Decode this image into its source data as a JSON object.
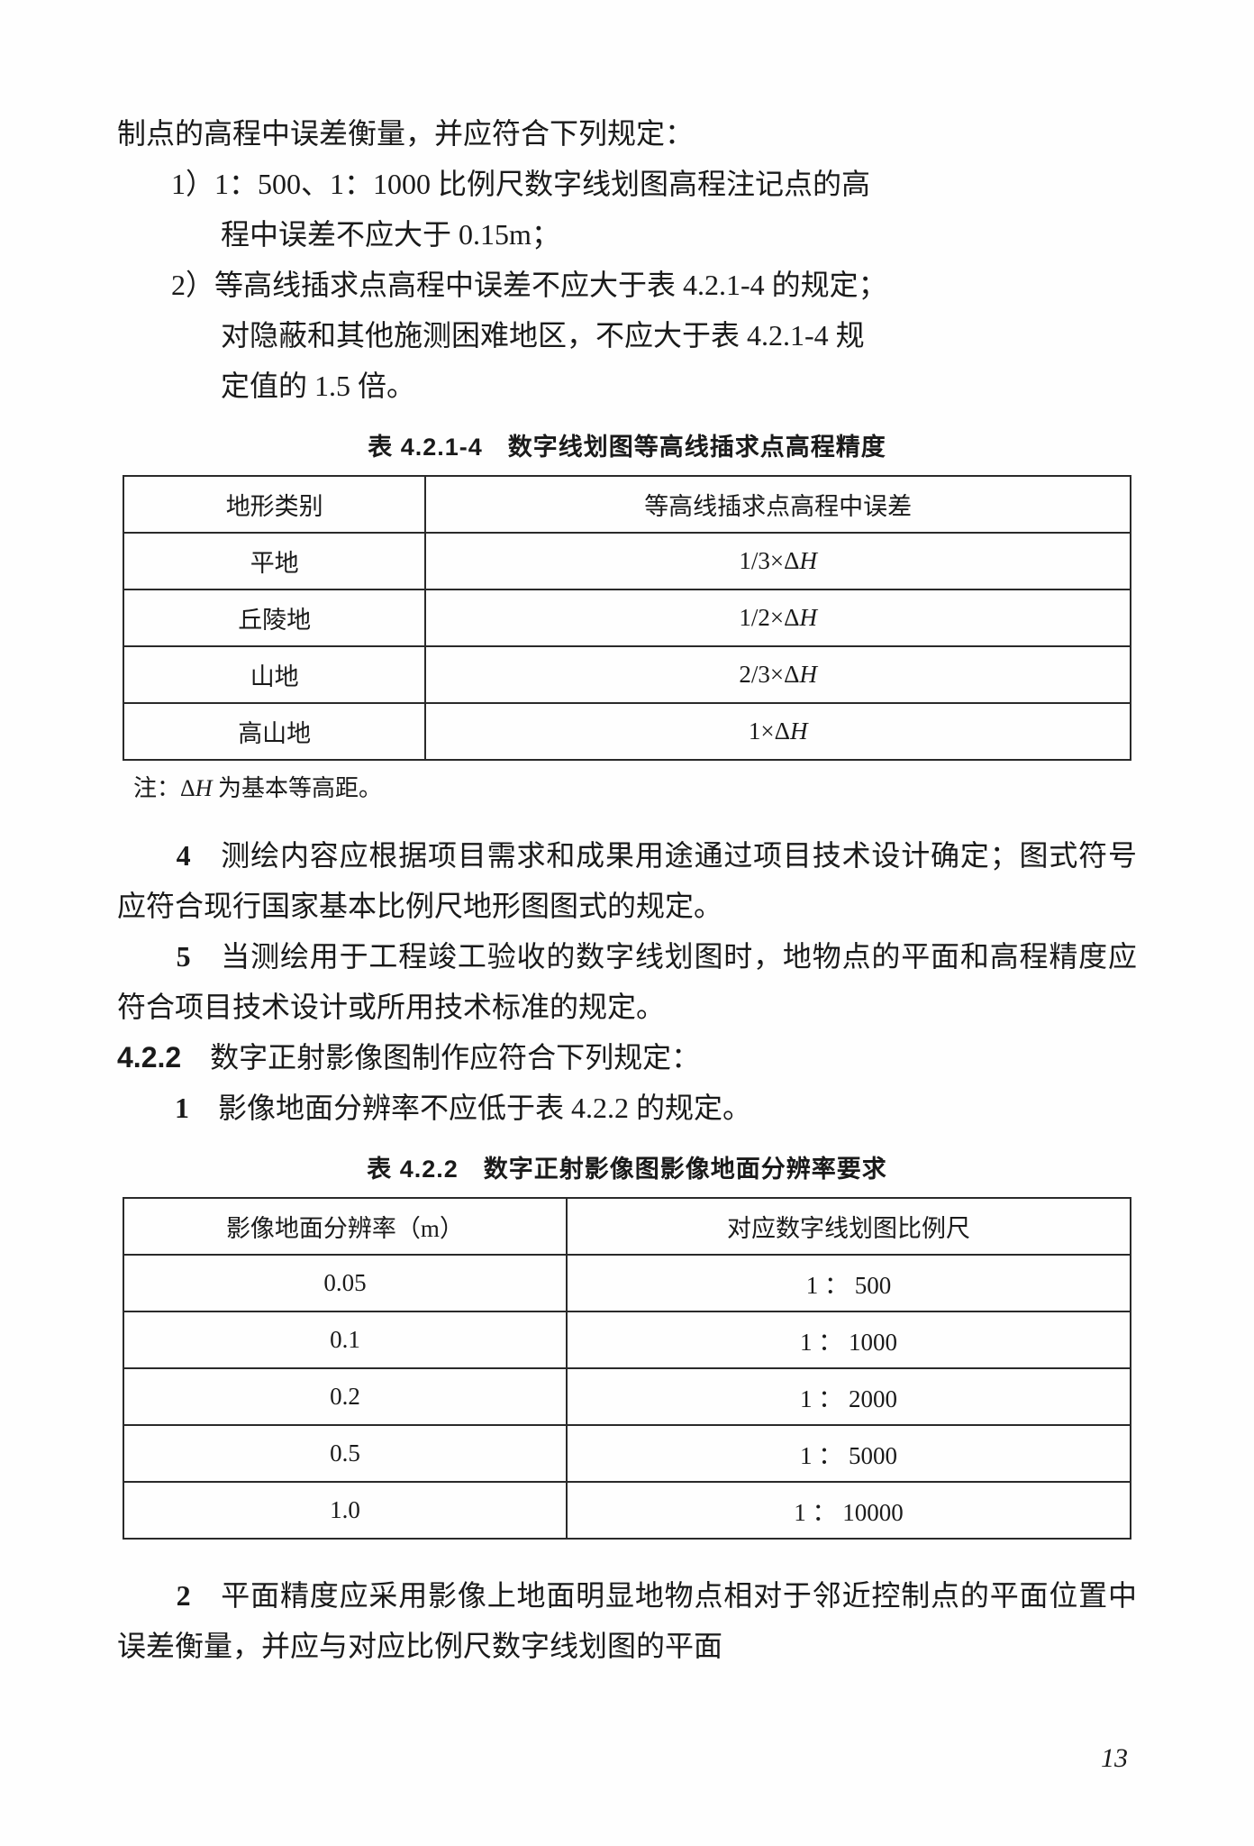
{
  "intro_line": "制点的高程中误差衡量，并应符合下列规定：",
  "item1_a": "1）1：500、1：1000 比例尺数字线划图高程注记点的高",
  "item1_b": "程中误差不应大于 0.15m；",
  "item2_a": "2）等高线插求点高程中误差不应大于表 4.2.1-4 的规定；",
  "item2_b": "对隐蔽和其他施测困难地区，不应大于表 4.2.1-4 规",
  "item2_c": "定值的 1.5 倍。",
  "table1_title": "表 4.2.1-4　数字线划图等高线插求点高程精度",
  "t1": {
    "h1": "地形类别",
    "h2": "等高线插求点高程中误差",
    "rows": [
      {
        "c1": "平地",
        "c2": "1/3×Δ<i>H</i>"
      },
      {
        "c1": "丘陵地",
        "c2": "1/2×Δ<i>H</i>"
      },
      {
        "c1": "山地",
        "c2": "2/3×Δ<i>H</i>"
      },
      {
        "c1": "高山地",
        "c2": "1×Δ<i>H</i>"
      }
    ]
  },
  "t1_note": "注：Δ<i>H</i> 为基本等高距。",
  "para4": "　　<b>4</b>　测绘内容应根据项目需求和成果用途通过项目技术设计确定；图式符号应符合现行国家基本比例尺地形图图式的规定。",
  "para5": "　　<b>5</b>　当测绘用于工程竣工验收的数字线划图时，地物点的平面和高程精度应符合项目技术设计或所用技术标准的规定。",
  "sec422": "<span class='section-head'>4.2.2</span>　数字正射影像图制作应符合下列规定：",
  "sec422_1": "　　<b>1</b>　影像地面分辨率不应低于表 4.2.2 的规定。",
  "table2_title": "表 4.2.2　数字正射影像图影像地面分辨率要求",
  "t2": {
    "h1": "影像地面分辨率（m）",
    "h2": "对应数字线划图比例尺",
    "rows": [
      {
        "c1": "0.05",
        "c2": "1 ： 500"
      },
      {
        "c1": "0.1",
        "c2": "1 ： 1000"
      },
      {
        "c1": "0.2",
        "c2": "1 ： 2000"
      },
      {
        "c1": "0.5",
        "c2": "1 ： 5000"
      },
      {
        "c1": "1.0",
        "c2": "1 ： 10000"
      }
    ]
  },
  "para_last": "　　<b>2</b>　平面精度应采用影像上地面明显地物点相对于邻近控制点的平面位置中误差衡量，并应与对应比例尺数字线划图的平面",
  "pagenum": "13"
}
